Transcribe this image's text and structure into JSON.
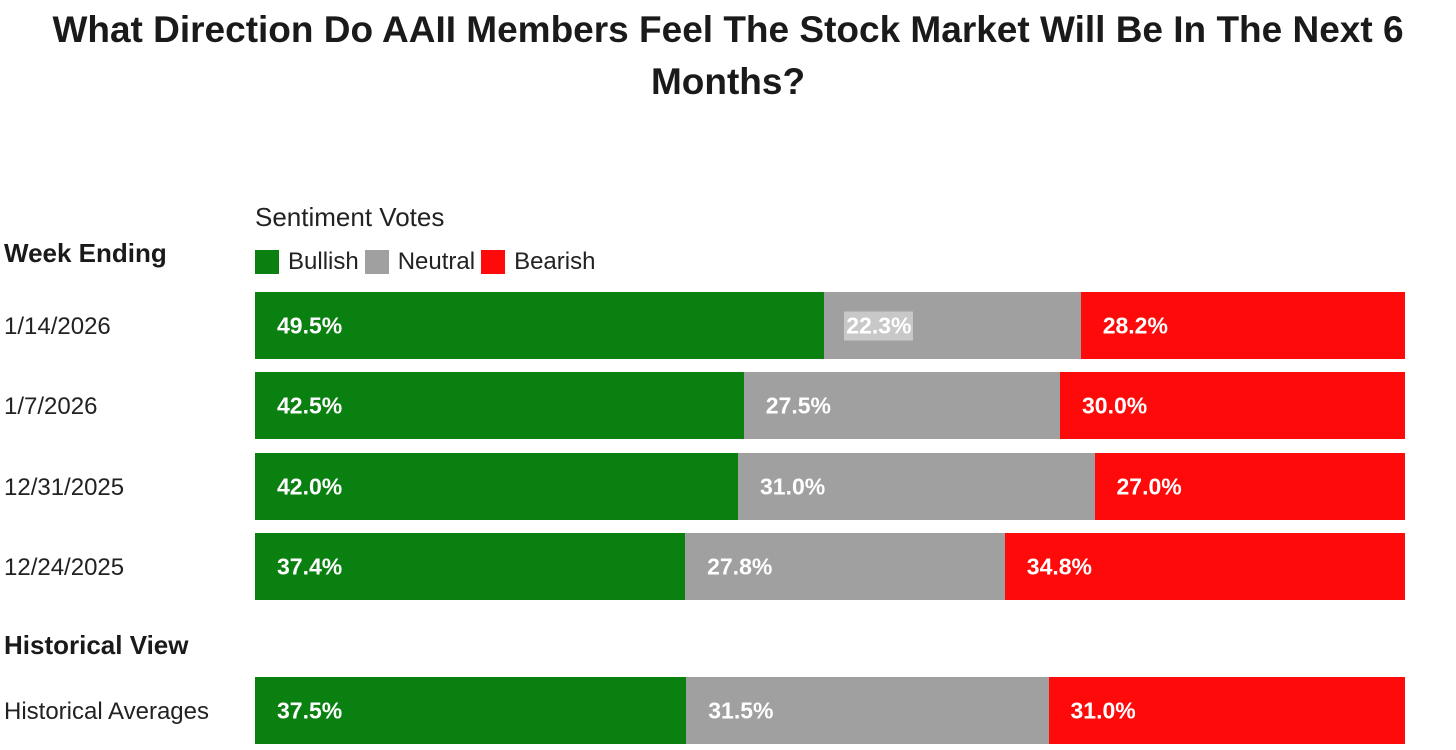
{
  "chart_data": {
    "type": "bar",
    "orientation": "horizontal",
    "stacked": true,
    "percent_stacked": true,
    "title": "What Direction Do AAII Members Feel The Stock Market Will Be In The Next 6 Months?",
    "legend_title": "Sentiment Votes",
    "row_header": "Week Ending",
    "historical_header": "Historical View",
    "series": [
      {
        "name": "Bullish",
        "color": "#0a8010"
      },
      {
        "name": "Neutral",
        "color": "#a0a0a0"
      },
      {
        "name": "Bearish",
        "color": "#ff0a0a"
      }
    ],
    "rows": [
      {
        "label": "1/14/2026",
        "values": [
          49.5,
          22.3,
          28.2
        ],
        "labels": [
          "49.5%",
          "22.3%",
          "28.2%"
        ]
      },
      {
        "label": "1/7/2026",
        "values": [
          42.5,
          27.5,
          30.0
        ],
        "labels": [
          "42.5%",
          "27.5%",
          "30.0%"
        ]
      },
      {
        "label": "12/31/2025",
        "values": [
          42.0,
          31.0,
          27.0
        ],
        "labels": [
          "42.0%",
          "31.0%",
          "27.0%"
        ]
      },
      {
        "label": "12/24/2025",
        "values": [
          37.4,
          27.8,
          34.8
        ],
        "labels": [
          "37.4%",
          "27.8%",
          "34.8%"
        ]
      }
    ],
    "historical": {
      "label": "Historical Averages",
      "values": [
        37.5,
        31.5,
        31.0
      ],
      "labels": [
        "37.5%",
        "31.5%",
        "31.0%"
      ]
    }
  }
}
